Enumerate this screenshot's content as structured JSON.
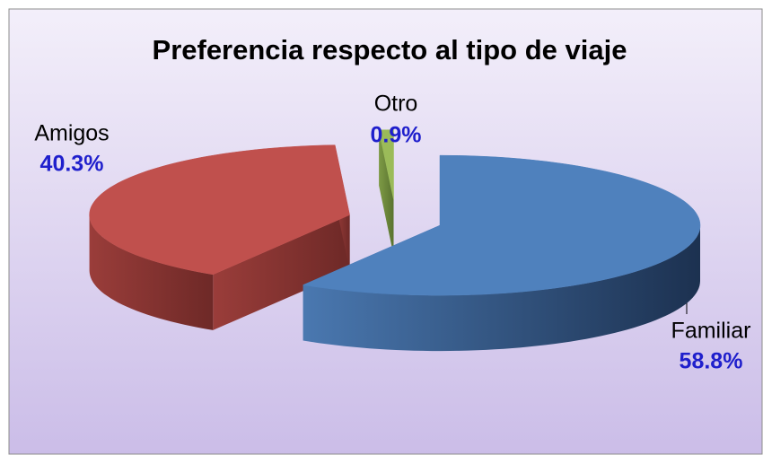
{
  "chart_data": {
    "type": "pie",
    "title": "Preferencia respecto al tipo de viaje",
    "categories": [
      "Familiar",
      "Amigos",
      "Otro"
    ],
    "values": [
      58.8,
      40.3,
      0.9
    ],
    "value_labels": [
      "58.8%",
      "40.3%",
      "0.9%"
    ],
    "colors": [
      "#4f81bd",
      "#c0504d",
      "#9bbb59"
    ],
    "legend": false
  }
}
